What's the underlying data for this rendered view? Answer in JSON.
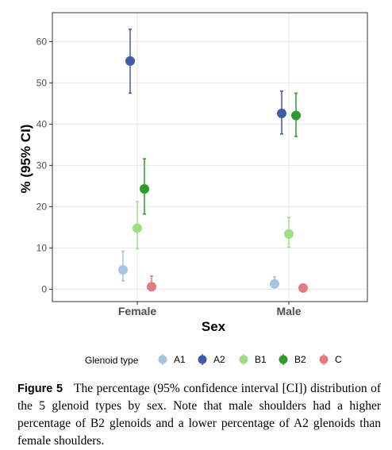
{
  "chart_data": {
    "type": "scatter",
    "subtype": "point-with-error-bars",
    "xlabel": "Sex",
    "ylabel": "% (95% CI)",
    "categories": [
      "Female",
      "Male"
    ],
    "ylim": [
      -3,
      67
    ],
    "yticks": [
      0,
      10,
      20,
      30,
      40,
      50,
      60
    ],
    "grid": true,
    "legend_title": "Glenoid type",
    "legend_position": "bottom",
    "series": [
      {
        "name": "A1",
        "color": "#a6c4df",
        "values": [
          4.7,
          1.3
        ],
        "lower": [
          2.0,
          0.3
        ],
        "upper": [
          9.2,
          3.0
        ]
      },
      {
        "name": "A2",
        "color": "#3e5aa8",
        "values": [
          55.3,
          42.6
        ],
        "lower": [
          47.5,
          37.6
        ],
        "upper": [
          63.0,
          48.0
        ]
      },
      {
        "name": "B1",
        "color": "#a1dd84",
        "values": [
          14.8,
          13.4
        ],
        "lower": [
          9.8,
          10.2
        ],
        "upper": [
          21.2,
          17.4
        ]
      },
      {
        "name": "B2",
        "color": "#2e9a2e",
        "values": [
          24.3,
          42.1
        ],
        "lower": [
          18.2,
          37.0
        ],
        "upper": [
          31.6,
          47.5
        ]
      },
      {
        "name": "C",
        "color": "#e37c80",
        "values": [
          0.6,
          0.3
        ],
        "lower": [
          0.0,
          0.0
        ],
        "upper": [
          3.2,
          1.2
        ]
      }
    ]
  },
  "caption": {
    "label": "Figure 5",
    "text": "The percentage (95% confidence interval [CI]) distribution of the 5 glenoid types by sex. Note that male shoulders had a higher percentage of B2 glenoids and a lower percentage of A2 glenoids than female shoulders."
  }
}
